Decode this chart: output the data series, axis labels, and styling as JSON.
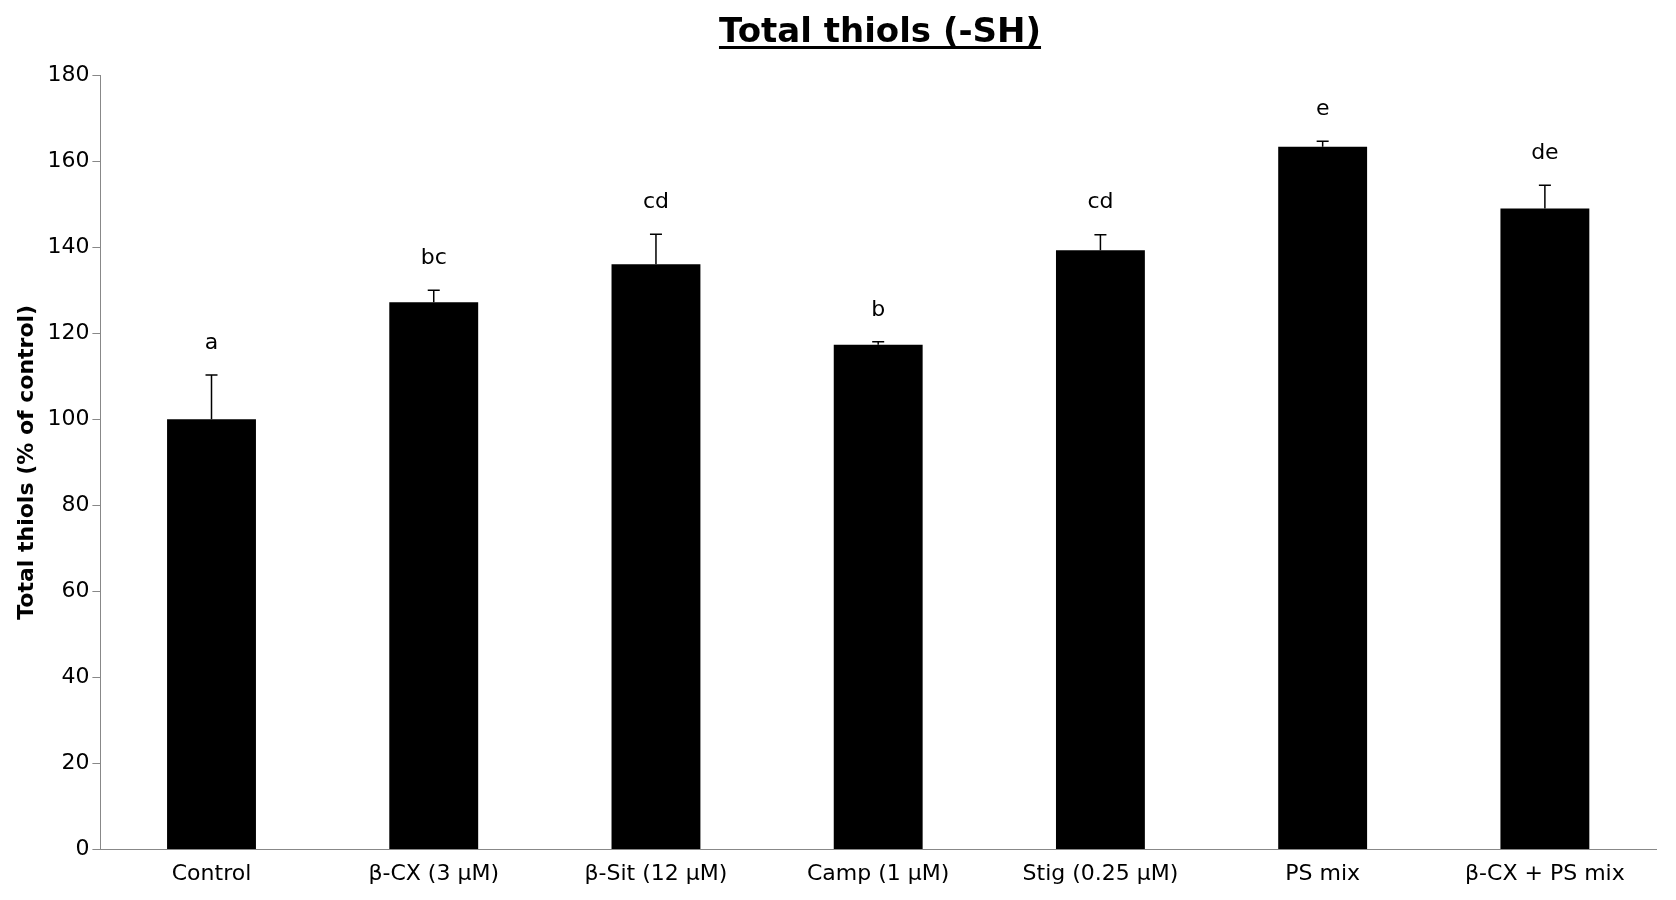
{
  "chart_data": {
    "type": "bar",
    "title": "Total thiols (-SH)",
    "ylabel": "Total thiols (% of control)",
    "categories": [
      "Control",
      "β-CX (3 μM)",
      "β-Sit (12 μM)",
      "Camp (1 μM)",
      "Stig (0.25 μM)",
      "PS mix",
      "β-CX + PS mix"
    ],
    "values": [
      100,
      127.2,
      136,
      117.3,
      139.3,
      163.3,
      149
    ],
    "errors": [
      [
        100,
        110.3
      ],
      [
        127.2,
        130
      ],
      [
        136,
        143
      ],
      [
        117.3,
        118
      ],
      [
        139.3,
        142.9
      ],
      [
        163.3,
        164.6
      ],
      [
        149,
        154.4
      ]
    ],
    "color": "#000000",
    "ylim": [
      0,
      180
    ],
    "yticks": [
      0,
      20,
      40,
      60,
      80,
      100,
      120,
      140,
      160,
      180
    ],
    "grid": false,
    "legend": false,
    "annotations": [
      "a",
      "bc",
      "cd",
      "b",
      "cd",
      "e",
      "de"
    ]
  }
}
